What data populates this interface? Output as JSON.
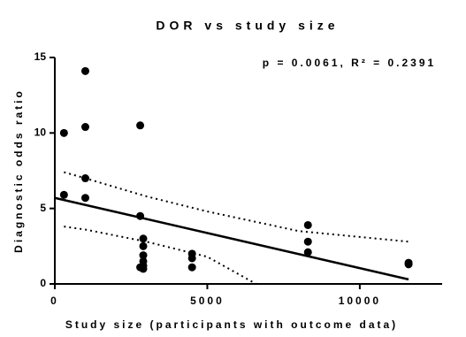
{
  "chart_data": {
    "type": "scatter",
    "title": "DOR vs study size",
    "annotation": "p = 0.0061, R² = 0.2391",
    "x_label": "Study size (participants with outcome data)",
    "y_label": "Diagnostic odds ratio",
    "xlim": [
      0,
      12700
    ],
    "xticks": [
      0,
      5000,
      10000
    ],
    "ylim": [
      0,
      15
    ],
    "yticks": [
      0,
      5,
      10,
      15
    ],
    "color": "#000000",
    "points": {
      "x": [
        300,
        300,
        1000,
        1000,
        1000,
        1000,
        2800,
        2800,
        2900,
        2900,
        2900,
        2900,
        2900,
        2900,
        2800,
        4500,
        4500,
        4500,
        8300,
        8300,
        8300,
        11600,
        11600
      ],
      "y": [
        10.0,
        5.9,
        14.1,
        10.4,
        7.0,
        5.7,
        10.5,
        4.5,
        3.0,
        2.5,
        1.9,
        1.5,
        1.2,
        1.0,
        1.1,
        2.0,
        1.7,
        1.1,
        3.9,
        2.8,
        2.1,
        1.4,
        1.3
      ]
    },
    "fit_line": {
      "x": [
        0,
        11600
      ],
      "y": [
        5.7,
        0.3
      ]
    },
    "ci_upper": {
      "x": [
        300,
        1000,
        3000,
        5000,
        8000,
        11600
      ],
      "y": [
        7.4,
        7.0,
        5.8,
        4.8,
        3.5,
        2.8
      ]
    },
    "ci_lower": {
      "x": [
        300,
        1000,
        3000,
        5000,
        6600
      ],
      "y": [
        3.8,
        3.6,
        2.8,
        1.8,
        0
      ]
    }
  }
}
